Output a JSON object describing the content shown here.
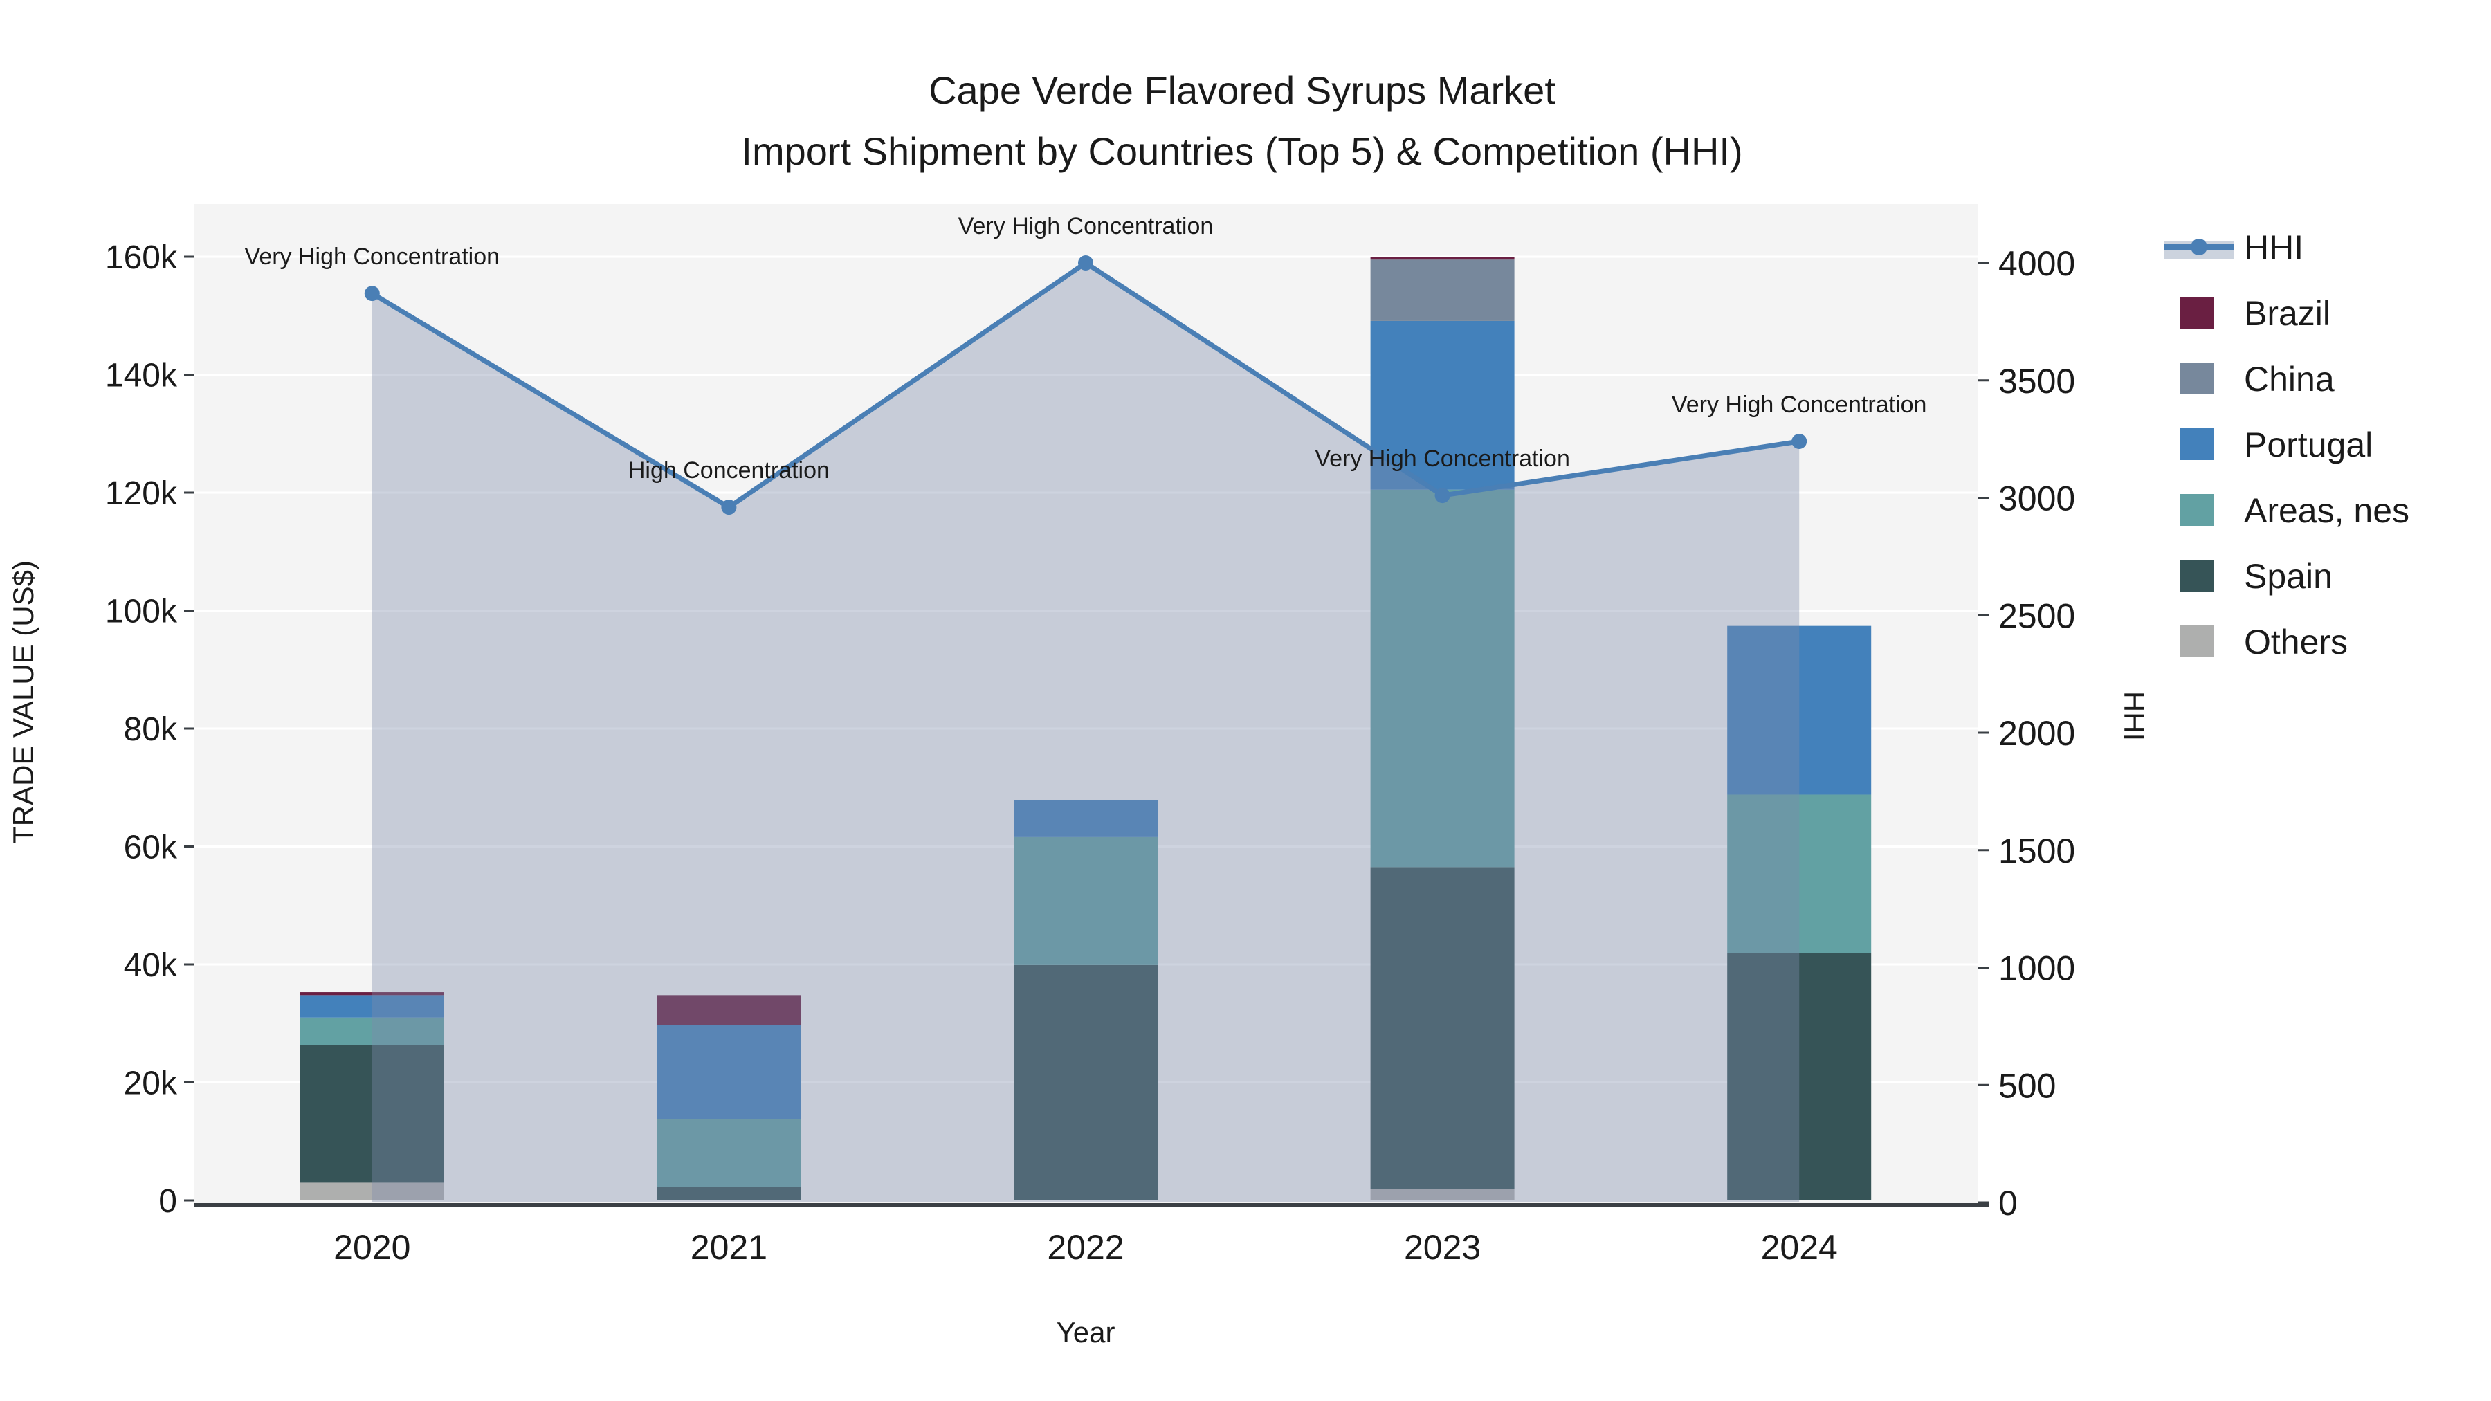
{
  "title": {
    "line1": "Cape Verde Flavored Syrups Market",
    "line2": "Import Shipment by Countries (Top 5) & Competition (HHI)"
  },
  "axes": {
    "x_title": "Year",
    "y_left_title": "TRADE VALUE (US$)",
    "y_right_title": "HHI",
    "y_left_ticks": [
      "0",
      "20k",
      "40k",
      "60k",
      "80k",
      "100k",
      "120k",
      "140k",
      "160k"
    ],
    "y_left_tick_values": [
      0,
      20000,
      40000,
      60000,
      80000,
      100000,
      120000,
      140000,
      160000
    ],
    "y_right_ticks": [
      "0",
      "500",
      "1000",
      "1500",
      "2000",
      "2500",
      "3000",
      "3500",
      "4000"
    ],
    "y_right_tick_values": [
      0,
      500,
      1000,
      1500,
      2000,
      2500,
      3000,
      3500,
      4000
    ]
  },
  "legend": [
    {
      "label": "HHI",
      "type": "line",
      "color": "#4a7fb5"
    },
    {
      "label": "Brazil",
      "type": "swatch",
      "color": "#6a1f42"
    },
    {
      "label": "China",
      "type": "swatch",
      "color": "#77889c"
    },
    {
      "label": "Portugal",
      "type": "swatch",
      "color": "#4381bb"
    },
    {
      "label": "Areas, nes",
      "type": "swatch",
      "color": "#62a1a3"
    },
    {
      "label": "Spain",
      "type": "swatch",
      "color": "#365457"
    },
    {
      "label": "Others",
      "type": "swatch",
      "color": "#aeafae"
    }
  ],
  "chart_data": {
    "type": "combo-stacked-bar-and-line",
    "categories": [
      "2020",
      "2021",
      "2022",
      "2023",
      "2024"
    ],
    "bar_unit": "US$",
    "series": [
      {
        "name": "Others",
        "color": "#aeafae",
        "values": [
          3000,
          0,
          0,
          1900,
          0
        ]
      },
      {
        "name": "Spain",
        "color": "#365457",
        "values": [
          23300,
          2300,
          39900,
          54600,
          41900
        ]
      },
      {
        "name": "Areas, nes",
        "color": "#62a1a3",
        "values": [
          4700,
          11500,
          21700,
          64000,
          26900
        ]
      },
      {
        "name": "Portugal",
        "color": "#4381bb",
        "values": [
          3800,
          15900,
          6300,
          28600,
          28600
        ]
      },
      {
        "name": "China",
        "color": "#77889c",
        "values": [
          0,
          0,
          0,
          10400,
          0
        ]
      },
      {
        "name": "Brazil",
        "color": "#6a1f42",
        "values": [
          500,
          5100,
          0,
          500,
          0
        ]
      }
    ],
    "stack_order_bottom_to_top": [
      "Others",
      "Spain",
      "Areas, nes",
      "Portugal",
      "China",
      "Brazil"
    ],
    "bar_totals": [
      35300,
      34800,
      67900,
      160000,
      97400
    ],
    "line_series": {
      "name": "HHI",
      "values": [
        3870,
        2960,
        4000,
        3010,
        3240
      ],
      "color": "#4a7fb5",
      "fill": "rgba(125,140,170,0.38)"
    },
    "annotations": [
      {
        "category": "2020",
        "text": "Very High Concentration"
      },
      {
        "category": "2021",
        "text": "High Concentration"
      },
      {
        "category": "2022",
        "text": "Very High Concentration"
      },
      {
        "category": "2023",
        "text": "Very High Concentration"
      },
      {
        "category": "2024",
        "text": "Very High Concentration"
      }
    ],
    "ylim_left": [
      0,
      168000
    ],
    "ylim_right": [
      0,
      4000
    ],
    "xlabel": "Year",
    "ylabel_left": "TRADE VALUE (US$)",
    "ylabel_right": "HHI",
    "grid": true,
    "legend_position": "right"
  },
  "colors": {
    "plot_bg": "#f4f4f4",
    "page_bg": "#ffffff",
    "gridline": "#ffffff",
    "axis_line": "#3a3f44",
    "hhi_line": "#4a7fb5",
    "hhi_fill": "rgba(125,140,170,0.38)",
    "legend_hhi_band": "#ccd3de"
  }
}
